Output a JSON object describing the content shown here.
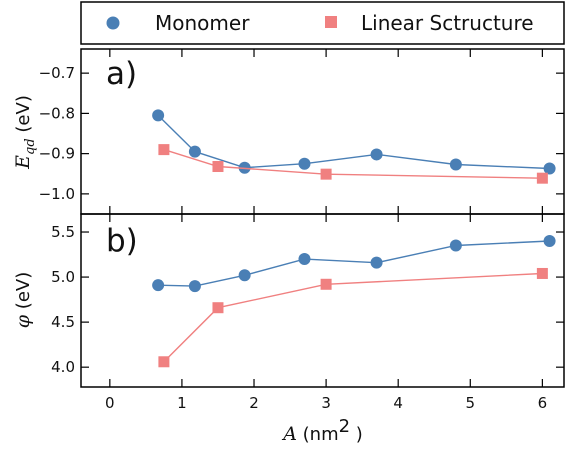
{
  "legend": {
    "entries": [
      {
        "label": "Monomer",
        "color": "#4a7fb5",
        "marker": "circle"
      },
      {
        "label": "Linear Sctructure",
        "color": "#f08080",
        "marker": "square"
      }
    ]
  },
  "chart_data": [
    {
      "type": "line",
      "panel_label": "a)",
      "ylabel": "E_qd (eV)",
      "ylim": [
        -1.05,
        -0.64
      ],
      "yticks": [
        -0.7,
        -0.8,
        -0.9,
        -1.0
      ],
      "ytick_labels": [
        "−0.7",
        "−0.8",
        "−0.9",
        "−1.0"
      ],
      "xlim": [
        -0.4,
        6.3
      ],
      "series": [
        {
          "name": "Monomer",
          "color": "#4a7fb5",
          "marker": "circle",
          "x": [
            0.67,
            1.18,
            1.87,
            2.7,
            3.7,
            4.8,
            6.1
          ],
          "y": [
            -0.805,
            -0.895,
            -0.935,
            -0.925,
            -0.902,
            -0.927,
            -0.937
          ]
        },
        {
          "name": "Linear Sctructure",
          "color": "#f08080",
          "marker": "square",
          "x": [
            0.75,
            1.5,
            3.0,
            6.0
          ],
          "y": [
            -0.89,
            -0.932,
            -0.951,
            -0.961
          ]
        }
      ]
    },
    {
      "type": "line",
      "panel_label": "b)",
      "ylabel": "φ (eV)",
      "ylim": [
        3.78,
        5.7
      ],
      "yticks": [
        4.0,
        4.5,
        5.0,
        5.5
      ],
      "ytick_labels": [
        "4.0",
        "4.5",
        "5.0",
        "5.5"
      ],
      "xlim": [
        -0.4,
        6.3
      ],
      "xticks": [
        0,
        1,
        2,
        3,
        4,
        5,
        6
      ],
      "xtick_labels": [
        "0",
        "1",
        "2",
        "3",
        "4",
        "5",
        "6"
      ],
      "xlabel": "A (nm² )",
      "series": [
        {
          "name": "Monomer",
          "color": "#4a7fb5",
          "marker": "circle",
          "x": [
            0.67,
            1.18,
            1.87,
            2.7,
            3.7,
            4.8,
            6.1
          ],
          "y": [
            4.91,
            4.9,
            5.02,
            5.2,
            5.16,
            5.35,
            5.4
          ]
        },
        {
          "name": "Linear Sctructure",
          "color": "#f08080",
          "marker": "square",
          "x": [
            0.75,
            1.5,
            3.0,
            6.0
          ],
          "y": [
            4.06,
            4.66,
            4.92,
            5.04
          ]
        }
      ]
    }
  ]
}
